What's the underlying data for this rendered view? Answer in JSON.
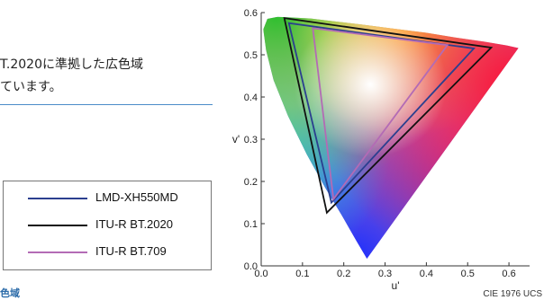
{
  "blurb": {
    "line1": "T.2020に準拠した広色域",
    "line2": "ています。"
  },
  "footer_tag": "色域",
  "chart_data": {
    "type": "line",
    "title": "",
    "xlabel": "u'",
    "ylabel": "v'",
    "xlim": [
      0.0,
      0.65
    ],
    "ylim": [
      0.0,
      0.6
    ],
    "xticks": [
      "0.0",
      "0.1",
      "0.2",
      "0.3",
      "0.4",
      "0.5",
      "0.6"
    ],
    "yticks": [
      "0.0",
      "0.1",
      "0.2",
      "0.3",
      "0.4",
      "0.5",
      "0.6"
    ],
    "credit": "CIE 1976 UCS",
    "legend_position": "left",
    "spectral_locus": [
      [
        0.256,
        0.017
      ],
      [
        0.23,
        0.06
      ],
      [
        0.195,
        0.12
      ],
      [
        0.155,
        0.185
      ],
      [
        0.11,
        0.265
      ],
      [
        0.065,
        0.355
      ],
      [
        0.03,
        0.44
      ],
      [
        0.012,
        0.51
      ],
      [
        0.005,
        0.56
      ],
      [
        0.015,
        0.585
      ],
      [
        0.04,
        0.59
      ],
      [
        0.08,
        0.588
      ],
      [
        0.12,
        0.586
      ],
      [
        0.17,
        0.58
      ],
      [
        0.24,
        0.572
      ],
      [
        0.32,
        0.562
      ],
      [
        0.4,
        0.552
      ],
      [
        0.47,
        0.541
      ],
      [
        0.54,
        0.531
      ],
      [
        0.595,
        0.522
      ],
      [
        0.623,
        0.516
      ]
    ],
    "series": [
      {
        "name": "LMD-XH550MD",
        "color": "#2b3f8f",
        "points": [
          [
            0.067,
            0.575
          ],
          [
            0.515,
            0.515
          ],
          [
            0.17,
            0.15
          ]
        ]
      },
      {
        "name": "ITU-R BT.2020",
        "color": "#111111",
        "points": [
          [
            0.056,
            0.587
          ],
          [
            0.557,
            0.517
          ],
          [
            0.159,
            0.126
          ]
        ]
      },
      {
        "name": "ITU-R BT.709",
        "color": "#b36bb5",
        "points": [
          [
            0.125,
            0.563
          ],
          [
            0.451,
            0.523
          ],
          [
            0.175,
            0.158
          ]
        ]
      }
    ]
  }
}
